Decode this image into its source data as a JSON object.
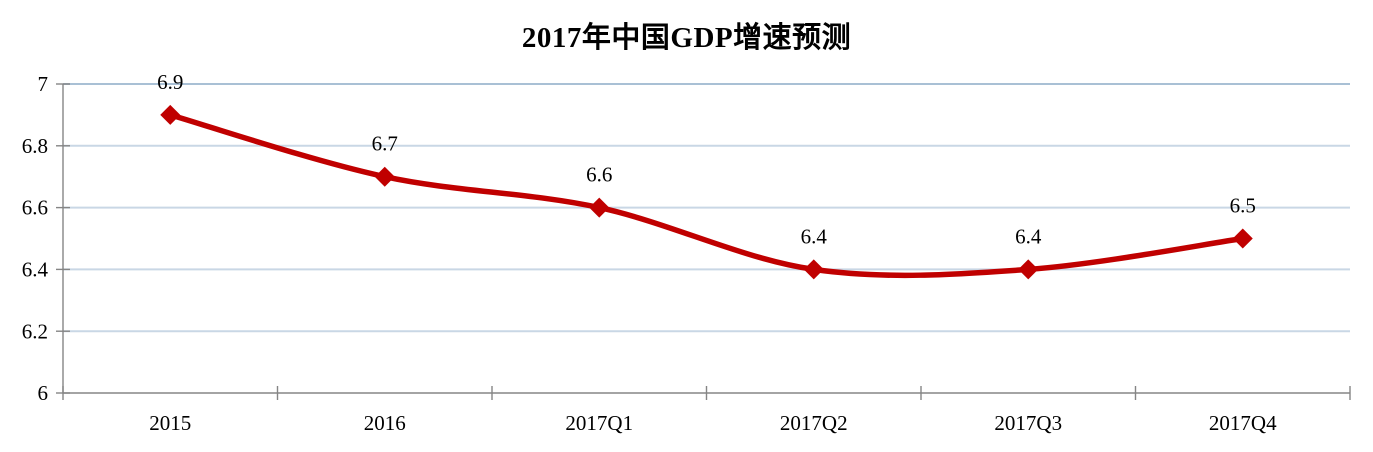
{
  "chart_data": {
    "type": "line",
    "title": "2017年中国GDP增速预测",
    "categories": [
      "2015",
      "2016",
      "2017Q1",
      "2017Q2",
      "2017Q3",
      "2017Q4"
    ],
    "values": [
      6.9,
      6.7,
      6.6,
      6.4,
      6.4,
      6.5
    ],
    "data_labels": [
      "6.9",
      "6.7",
      "6.6",
      "6.4",
      "6.4",
      "6.5"
    ],
    "xlabel": "",
    "ylabel": "",
    "ylim": [
      6,
      7
    ],
    "yticks": [
      6,
      6.2,
      6.4,
      6.6,
      6.8,
      7
    ],
    "ytick_labels": [
      "6",
      "6.2",
      "6.4",
      "6.6",
      "6.8",
      "7"
    ],
    "grid": true,
    "legend": "none",
    "smooth": true,
    "marker": "diamond",
    "line_color": "#C00000",
    "marker_color": "#C00000",
    "gridline_color": "#C9D7E5",
    "gridline_color_top": "#A9C0D5",
    "axis_color": "#858585",
    "text_color": "#000000"
  }
}
